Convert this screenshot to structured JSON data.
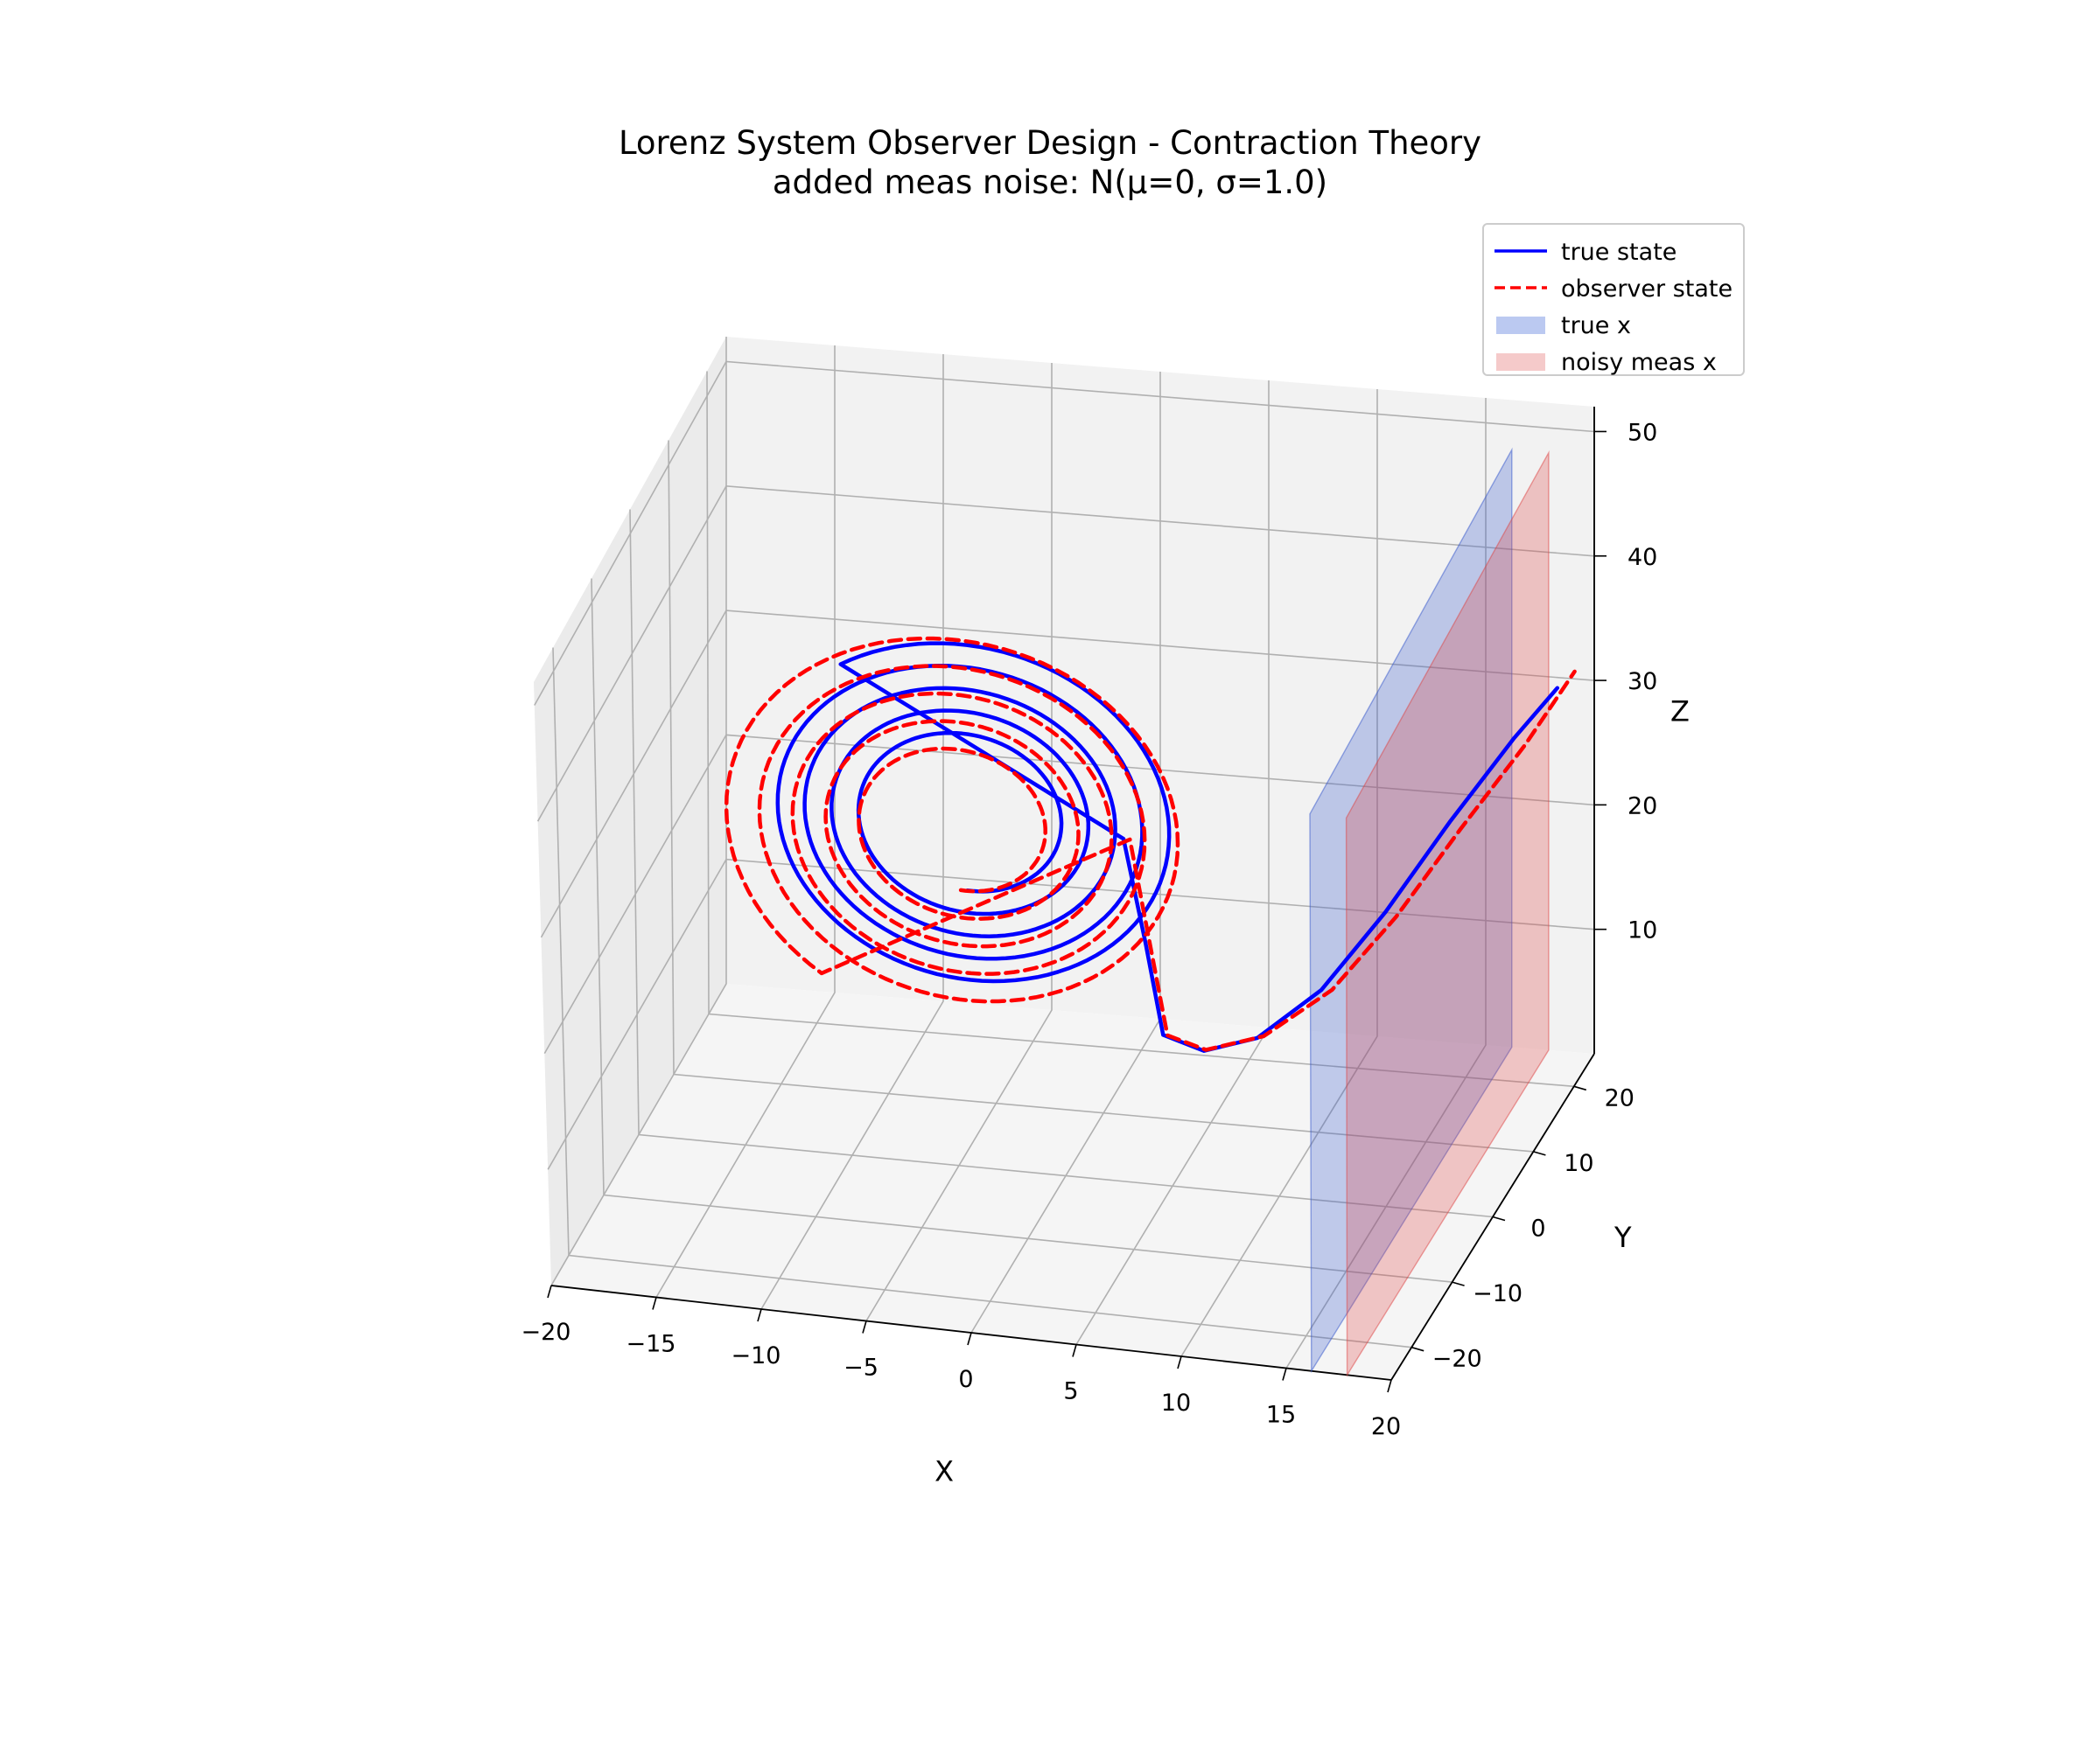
{
  "chart_data": {
    "type": "line",
    "projection": "3d",
    "title": "Lorenz System Observer Design - Contraction Theory",
    "subtitle": "added meas noise: N(μ=0, σ=1.0)",
    "xlabel": "X",
    "ylabel": "Y",
    "zlabel": "Z",
    "xlim": [
      -20,
      20
    ],
    "ylim": [
      -25,
      25
    ],
    "zlim": [
      0,
      52
    ],
    "xticks": [
      -20,
      -15,
      -10,
      -5,
      0,
      5,
      10,
      15,
      20
    ],
    "yticks": [
      -20,
      -10,
      0,
      10,
      20
    ],
    "zticks": [
      10,
      20,
      30,
      40,
      50
    ],
    "xtick_labels": [
      "−20",
      "−15",
      "−10",
      "−5",
      "0",
      "5",
      "10",
      "15",
      "20"
    ],
    "ytick_labels": [
      "−20",
      "−10",
      "0",
      "10",
      "20"
    ],
    "ztick_labels": [
      "10",
      "20",
      "30",
      "40",
      "50"
    ],
    "grid": true,
    "legend_position": "top-right",
    "legend": [
      {
        "label": "true state",
        "style": "solid line",
        "color": "#0000ff"
      },
      {
        "label": "observer state",
        "style": "dashed line",
        "color": "#ff0000"
      },
      {
        "label": "true x",
        "style": "filled patch",
        "color": "#aabbee"
      },
      {
        "label": "noisy meas x",
        "style": "filled patch",
        "color": "#f4c4c4"
      }
    ],
    "planes": [
      {
        "name": "true x",
        "x": 16.2,
        "color": "#3355cc"
      },
      {
        "name": "noisy meas x",
        "x": 17.9,
        "color": "#dd4444"
      }
    ],
    "series": [
      {
        "name": "true state",
        "color": "#0000ff",
        "dash": "solid",
        "spiral": {
          "cx": -4.5,
          "cz": 29,
          "r0": 3.9,
          "r1": 9.4,
          "turns": 4.6
        },
        "bridge": [
          [
            2.8,
            28.5
          ],
          [
            3.8,
            20
          ],
          [
            4.6,
            12.5
          ],
          [
            6.5,
            11.5
          ],
          [
            9,
            13
          ],
          [
            12,
            17.5
          ],
          [
            15,
            24.5
          ],
          [
            18,
            32.5
          ],
          [
            21,
            40
          ],
          [
            23,
            44.5
          ]
        ]
      },
      {
        "name": "observer state",
        "color": "#ff0000",
        "dash": "dashed",
        "spiral": {
          "cx": -4.8,
          "cz": 28.2,
          "r0": 3.4,
          "r1": 10.6,
          "turns": 4.9
        },
        "bridge": [
          [
            3.1,
            28.5
          ],
          [
            4.0,
            20
          ],
          [
            4.8,
            12.5
          ],
          [
            6.6,
            11.6
          ],
          [
            9.3,
            13.2
          ],
          [
            12.5,
            17.6
          ],
          [
            15.5,
            24.2
          ],
          [
            18.5,
            32
          ],
          [
            21.5,
            39.5
          ],
          [
            23.8,
            46
          ]
        ]
      }
    ]
  }
}
